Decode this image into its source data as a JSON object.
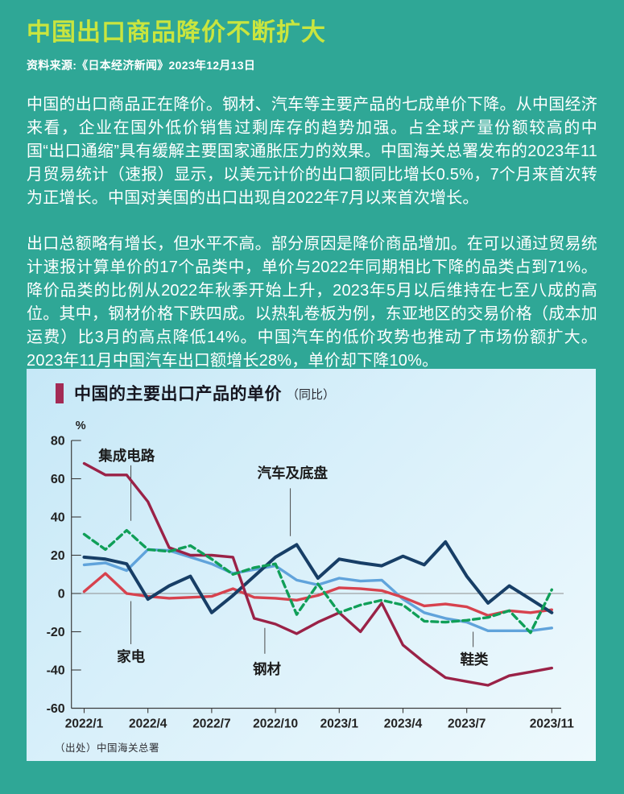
{
  "article": {
    "headline": "中国出口商品降价不断扩大",
    "headline_color": "#C9E53F",
    "source_line": "资料来源:《日本经济新闻》2023年12月13日",
    "paragraphs": [
      "中国的出口商品正在降价。钢材、汽车等主要产品的七成单价下降。从中国经济来看，企业在国外低价销售过剩库存的趋势加强。占全球产量份额较高的中国“出口通缩”具有缓解主要国家通胀压力的效果。中国海关总署发布的2023年11月贸易统计（速报）显示，以美元计价的出口额同比增长0.5%，7个月来首次转为正增长。中国对美国的出口出现自2022年7月以来首次增长。",
      "出口总额略有增长，但水平不高。部分原因是降价商品增加。在可以通过贸易统计速报计算单价的17个品类中，单价与2022年同期相比下降的品类占到71%。降价品类的比例从2022年秋季开始上升，2023年5月以后维持在七至八成的高位。其中，钢材价格下跌四成。以热轧卷板为例，东亚地区的交易价格（成本加运费）比3月的高点降低14%。中国汽车的低价攻势也推动了市场份额扩大。2023年11月中国汽车出口额增长28%，单价却下降10%。"
    ]
  },
  "chart_panel": {
    "title": "中国的主要出口产品的单价",
    "subtitle": "（同比）",
    "marker_color": "#A32B55",
    "source_note": "（出处）中国海关总署",
    "background_top": "#c6e8f7",
    "background_bottom": "#eef9fd"
  },
  "chart_data": {
    "type": "line",
    "unit_label": "%",
    "ylim": [
      -60,
      80
    ],
    "grid": "zero-line-only",
    "legend_position": "inline-annotations",
    "y_ticks": [
      80,
      60,
      40,
      20,
      0,
      -20,
      -40,
      -60
    ],
    "x_tick_labels": [
      {
        "month": 0,
        "label": "2022/1"
      },
      {
        "month": 3,
        "label": "2022/4"
      },
      {
        "month": 6,
        "label": "2022/7"
      },
      {
        "month": 9,
        "label": "2022/10"
      },
      {
        "month": 12,
        "label": "2023/1"
      },
      {
        "month": 15,
        "label": "2023/4"
      },
      {
        "month": 18,
        "label": "2023/7"
      },
      {
        "month": 22,
        "label": "2023/11"
      }
    ],
    "categories": [
      "2022/1",
      "2022/2",
      "2022/3",
      "2022/4",
      "2022/5",
      "2022/6",
      "2022/7",
      "2022/8",
      "2022/9",
      "2022/10",
      "2022/11",
      "2022/12",
      "2023/1",
      "2023/2",
      "2023/3",
      "2023/4",
      "2023/5",
      "2023/6",
      "2023/7",
      "2023/8",
      "2023/9",
      "2023/10",
      "2023/11"
    ],
    "series": [
      {
        "name": "鞋类",
        "key": "footwear",
        "color": "#60A3DB",
        "dash": null,
        "values": [
          15,
          16,
          12,
          23,
          22.5,
          19,
          15.5,
          10.5,
          12.5,
          14.5,
          7,
          4.5,
          8,
          6.5,
          7,
          -3,
          -10,
          -13,
          -15,
          -19.5,
          -19.5,
          -19.5,
          -18
        ]
      },
      {
        "name": "家电",
        "key": "home-appliances",
        "color": "#D7424E",
        "dash": null,
        "values": [
          1,
          10.5,
          0,
          -1.5,
          -2.5,
          -2,
          -1.5,
          2.5,
          -2,
          -2.5,
          -3.5,
          -1,
          3,
          2.5,
          1.5,
          -2,
          -6.5,
          -5.5,
          -7,
          -11.5,
          -9,
          -10,
          -8.5
        ]
      },
      {
        "name": "汽车及底盘",
        "key": "autos-chassis",
        "color": "#173E66",
        "dash": null,
        "values": [
          19,
          18,
          15.5,
          -3,
          4,
          9,
          -10,
          -1,
          9,
          19,
          25.5,
          8,
          18,
          16,
          14.5,
          19.5,
          15,
          27,
          9,
          -5,
          4,
          -3,
          -10
        ]
      },
      {
        "name": "钢材",
        "key": "steel",
        "color": "#9A2247",
        "dash": null,
        "values": [
          68,
          62,
          62,
          48,
          24,
          20,
          20,
          19,
          -13,
          -16,
          -21,
          -15,
          -10,
          -20,
          -5,
          -27,
          -36,
          -44,
          -46,
          -48,
          -43,
          -41,
          -39
        ]
      },
      {
        "name": "集成电路",
        "key": "integrated-circuits",
        "color": "#109F58",
        "dash": "8 5",
        "values": [
          31,
          23,
          33,
          23,
          22,
          25,
          18,
          10,
          13.5,
          15.5,
          -11,
          5,
          -10,
          -6,
          -3.5,
          -6,
          -14.5,
          -15,
          -14,
          -12.5,
          -9,
          -20.5,
          2
        ]
      }
    ],
    "annotations": [
      {
        "label": "集成电路",
        "key": "integrated-circuits",
        "month_x": 2.2,
        "line_from": 67,
        "line_to": 38,
        "label_month_x": 2.0,
        "label_value": 72
      },
      {
        "label": "汽车及底盘",
        "key": "autos-chassis",
        "month_x": 9.7,
        "line_from": 55,
        "line_to": 30,
        "label_month_x": 9.8,
        "label_value": 63
      },
      {
        "label": "家电",
        "key": "home-appliances",
        "month_x": 2.2,
        "line_from": -4,
        "line_to": -26.5,
        "label_month_x": 2.2,
        "label_value": -33
      },
      {
        "label": "钢材",
        "key": "steel",
        "month_x": 8.5,
        "line_from": -18,
        "line_to": -31.5,
        "label_month_x": 8.6,
        "label_value": -39.5
      },
      {
        "label": "鞋类",
        "key": "footwear",
        "month_x": 18.3,
        "line_from": -20,
        "line_to": -28,
        "label_month_x": 18.35,
        "label_value": -34.5
      }
    ]
  }
}
